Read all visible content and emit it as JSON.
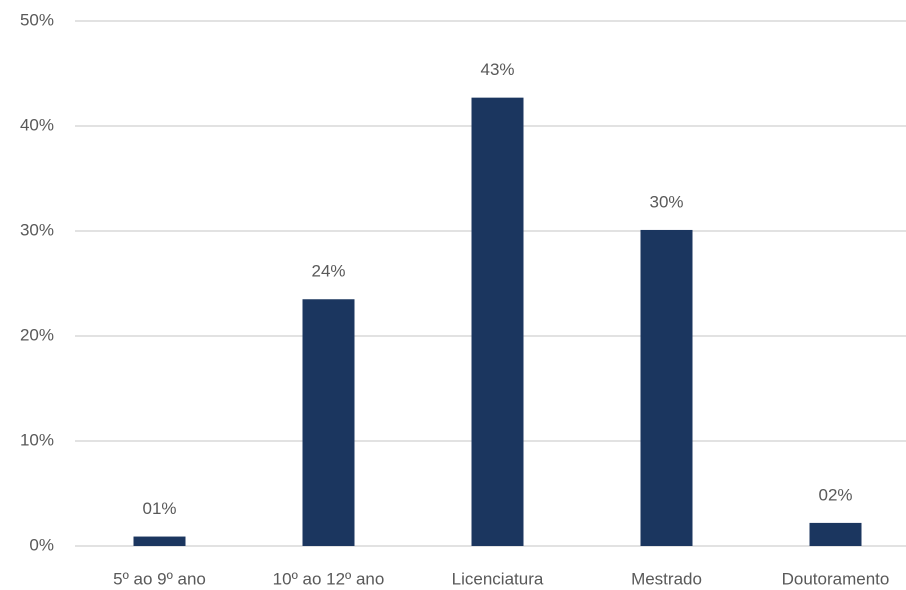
{
  "chart_data": {
    "type": "bar",
    "categories": [
      "5º ao 9º ano",
      "10º ao 12º ano",
      "Licenciatura",
      "Mestrado",
      "Doutoramento"
    ],
    "values": [
      0.9,
      23.5,
      42.7,
      30.1,
      2.2
    ],
    "value_labels": [
      "01%",
      "24%",
      "43%",
      "30%",
      "02%"
    ],
    "color": "#1b365f",
    "ylim": [
      0,
      50
    ],
    "yticks": [
      {
        "value": 0,
        "label": "0%"
      },
      {
        "value": 10,
        "label": "10%"
      },
      {
        "value": 20,
        "label": "20%"
      },
      {
        "value": 30,
        "label": "30%"
      },
      {
        "value": 40,
        "label": "40%"
      },
      {
        "value": 50,
        "label": "50%"
      }
    ],
    "grid": true
  }
}
